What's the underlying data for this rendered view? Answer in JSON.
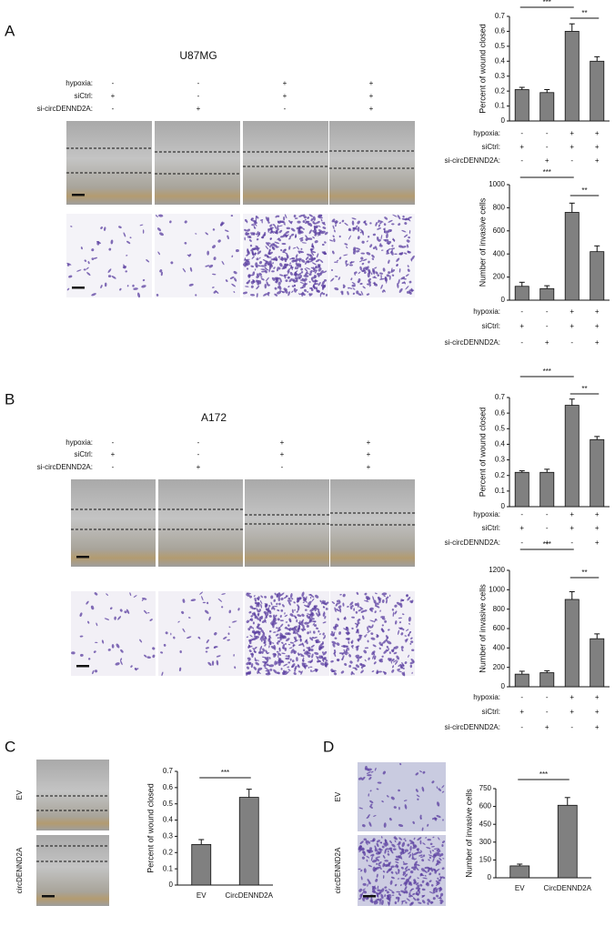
{
  "panels": [
    {
      "letter": "A",
      "title": "U87MG"
    },
    {
      "letter": "B",
      "title": "A172"
    },
    {
      "letter": "C",
      "image_labels": [
        "EV",
        "circDENND2A"
      ]
    },
    {
      "letter": "D",
      "image_labels": [
        "EV",
        "circDENND2A"
      ]
    }
  ],
  "chart_data": [
    {
      "type": "bar",
      "y_label": "Percent of wound closed",
      "color": "#808080",
      "categories": [
        null,
        null,
        null,
        null
      ],
      "values": [
        0.21,
        0.19,
        0.6,
        0.4
      ],
      "errors": [
        0.015,
        0.02,
        0.05,
        0.03
      ],
      "ylim": [
        0,
        0.7
      ],
      "yticks": [
        0,
        0.1,
        0.2,
        0.3,
        0.4,
        0.5,
        0.6,
        0.7
      ],
      "significance": [
        {
          "from": 0,
          "to": 2,
          "label": "***"
        },
        {
          "from": 2,
          "to": 3,
          "label": "**"
        }
      ],
      "conditions": [
        {
          "label": "hypoxia:",
          "marks": [
            "-",
            "-",
            "+",
            "+"
          ]
        },
        {
          "label": "siCtrl:",
          "marks": [
            "+",
            "-",
            "+",
            "+"
          ]
        },
        {
          "label": "si-circDENND2A:",
          "marks": [
            "-",
            "+",
            "-",
            "+"
          ]
        }
      ]
    },
    {
      "type": "bar",
      "y_label": "Number of invasive cells",
      "color": "#808080",
      "categories": [
        null,
        null,
        null,
        null
      ],
      "values": [
        120,
        100,
        760,
        420
      ],
      "errors": [
        35,
        25,
        80,
        50
      ],
      "ylim": [
        0,
        1000
      ],
      "yticks": [
        0,
        200,
        400,
        600,
        800,
        1000
      ],
      "significance": [
        {
          "from": 0,
          "to": 2,
          "label": "***"
        },
        {
          "from": 2,
          "to": 3,
          "label": "**"
        }
      ],
      "conditions": [
        {
          "label": "hypoxia:",
          "marks": [
            "-",
            "-",
            "+",
            "+"
          ]
        },
        {
          "label": "siCtrl:",
          "marks": [
            "+",
            "-",
            "+",
            "+"
          ]
        },
        {
          "label": "si-circDENND2A:",
          "marks": [
            "-",
            "+",
            "-",
            "+"
          ]
        }
      ]
    },
    {
      "type": "bar",
      "y_label": "Percent of wound closed",
      "color": "#808080",
      "categories": [
        null,
        null,
        null,
        null
      ],
      "values": [
        0.22,
        0.22,
        0.65,
        0.43
      ],
      "errors": [
        0.01,
        0.02,
        0.04,
        0.02
      ],
      "ylim": [
        0,
        0.7
      ],
      "yticks": [
        0,
        0.1,
        0.2,
        0.3,
        0.4,
        0.5,
        0.6,
        0.7
      ],
      "significance": [
        {
          "from": 0,
          "to": 2,
          "label": "***"
        },
        {
          "from": 2,
          "to": 3,
          "label": "**"
        }
      ],
      "conditions": [
        {
          "label": "hypoxia:",
          "marks": [
            "-",
            "-",
            "+",
            "+"
          ]
        },
        {
          "label": "siCtrl:",
          "marks": [
            "+",
            "-",
            "+",
            "+"
          ]
        },
        {
          "label": "si-circDENND2A:",
          "marks": [
            "-",
            "+",
            "-",
            "+"
          ]
        }
      ]
    },
    {
      "type": "bar",
      "y_label": "Number of invasive cells",
      "color": "#808080",
      "categories": [
        null,
        null,
        null,
        null
      ],
      "values": [
        130,
        145,
        900,
        495
      ],
      "errors": [
        30,
        20,
        80,
        50
      ],
      "ylim": [
        0,
        1200
      ],
      "yticks": [
        0,
        200,
        400,
        600,
        800,
        1000,
        1200
      ],
      "significance": [
        {
          "from": 0,
          "to": 2,
          "label": "***"
        },
        {
          "from": 2,
          "to": 3,
          "label": "**"
        }
      ],
      "conditions": [
        {
          "label": "hypoxia:",
          "marks": [
            "-",
            "-",
            "+",
            "+"
          ]
        },
        {
          "label": "siCtrl:",
          "marks": [
            "+",
            "-",
            "+",
            "+"
          ]
        },
        {
          "label": "si-circDENND2A:",
          "marks": [
            "-",
            "+",
            "-",
            "+"
          ]
        }
      ]
    },
    {
      "type": "bar",
      "y_label": "Percent of wound closed",
      "color": "#808080",
      "categories": [
        "EV",
        "CircDENND2A"
      ],
      "values": [
        0.25,
        0.54
      ],
      "errors": [
        0.03,
        0.05
      ],
      "ylim": [
        0,
        0.7
      ],
      "yticks": [
        0,
        0.1,
        0.2,
        0.3,
        0.4,
        0.5,
        0.6,
        0.7
      ],
      "significance": [
        {
          "from": 0,
          "to": 1,
          "label": "***"
        }
      ]
    },
    {
      "type": "bar",
      "y_label": "Number of invasive cells",
      "color": "#808080",
      "categories": [
        "EV",
        "CircDENND2A"
      ],
      "values": [
        100,
        610
      ],
      "errors": [
        15,
        65
      ],
      "ylim": [
        0,
        750
      ],
      "yticks": [
        0,
        150,
        300,
        450,
        600,
        750
      ],
      "significance": [
        {
          "from": 0,
          "to": 1,
          "label": "***"
        }
      ]
    }
  ]
}
